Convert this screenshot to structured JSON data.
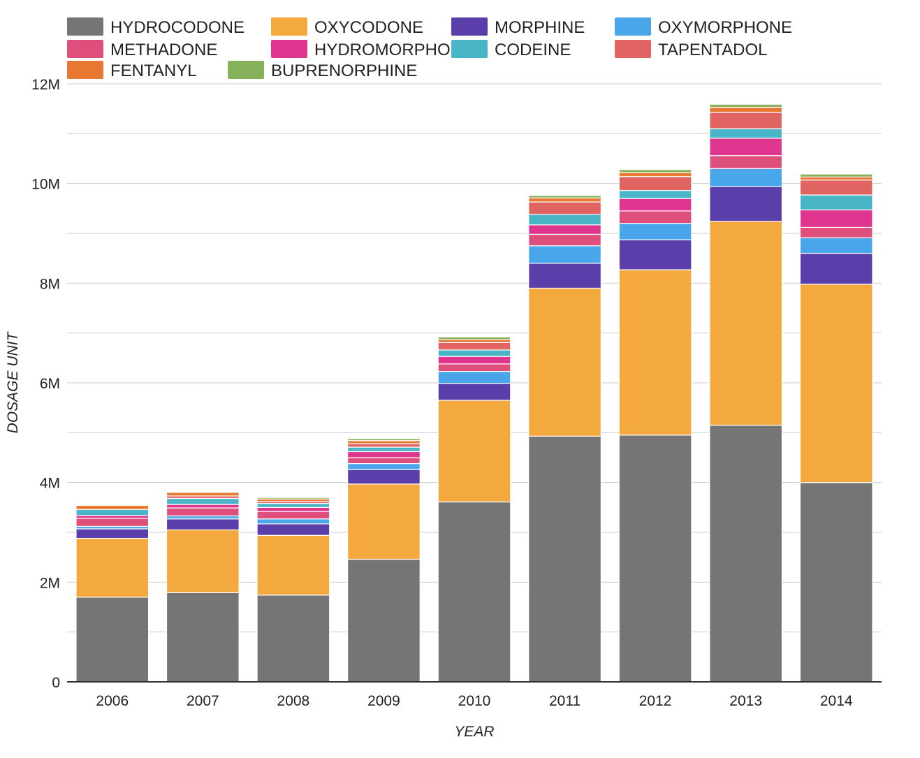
{
  "chart_data": {
    "type": "bar",
    "stacked": true,
    "xlabel": "YEAR",
    "ylabel": "DOSAGE UNIT",
    "ylim": [
      0,
      12000000
    ],
    "y_ticks": [
      "0",
      "2M",
      "4M",
      "6M",
      "8M",
      "10M",
      "12M"
    ],
    "grid": true,
    "legend_position": "top",
    "categories": [
      "2006",
      "2007",
      "2008",
      "2009",
      "2010",
      "2011",
      "2012",
      "2013",
      "2014"
    ],
    "series": [
      {
        "name": "HYDROCODONE",
        "color": "#757575",
        "values": [
          1700000,
          1790000,
          1740000,
          2460000,
          3610000,
          4930000,
          4950000,
          5150000,
          4000000
        ]
      },
      {
        "name": "OXYCODONE",
        "color": "#f4a93e",
        "values": [
          1180000,
          1260000,
          1200000,
          1510000,
          2040000,
          2970000,
          3320000,
          4090000,
          3980000
        ]
      },
      {
        "name": "MORPHINE",
        "color": "#5a3eaa",
        "values": [
          190000,
          220000,
          230000,
          290000,
          340000,
          500000,
          600000,
          700000,
          620000
        ]
      },
      {
        "name": "OXYMORPHONE",
        "color": "#4aa6ea",
        "values": [
          50000,
          60000,
          100000,
          120000,
          240000,
          350000,
          330000,
          360000,
          310000
        ]
      },
      {
        "name": "METHADONE",
        "color": "#df4f7c",
        "values": [
          160000,
          160000,
          150000,
          120000,
          150000,
          230000,
          250000,
          260000,
          210000
        ]
      },
      {
        "name": "HYDROMORPHONE",
        "color": "#e0358e",
        "values": [
          60000,
          70000,
          80000,
          120000,
          150000,
          190000,
          250000,
          350000,
          350000
        ]
      },
      {
        "name": "CODEINE",
        "color": "#4bb5c8",
        "values": [
          120000,
          120000,
          80000,
          90000,
          130000,
          210000,
          160000,
          190000,
          300000
        ]
      },
      {
        "name": "TAPENTADOL",
        "color": "#e26462",
        "values": [
          0,
          50000,
          40000,
          70000,
          150000,
          250000,
          280000,
          330000,
          300000
        ]
      },
      {
        "name": "FENTANYL",
        "color": "#e87732",
        "values": [
          80000,
          70000,
          50000,
          60000,
          60000,
          80000,
          80000,
          100000,
          60000
        ]
      },
      {
        "name": "BUPRENORPHINE",
        "color": "#86b05a",
        "values": [
          10000,
          20000,
          30000,
          40000,
          50000,
          50000,
          60000,
          60000,
          60000
        ]
      }
    ]
  }
}
